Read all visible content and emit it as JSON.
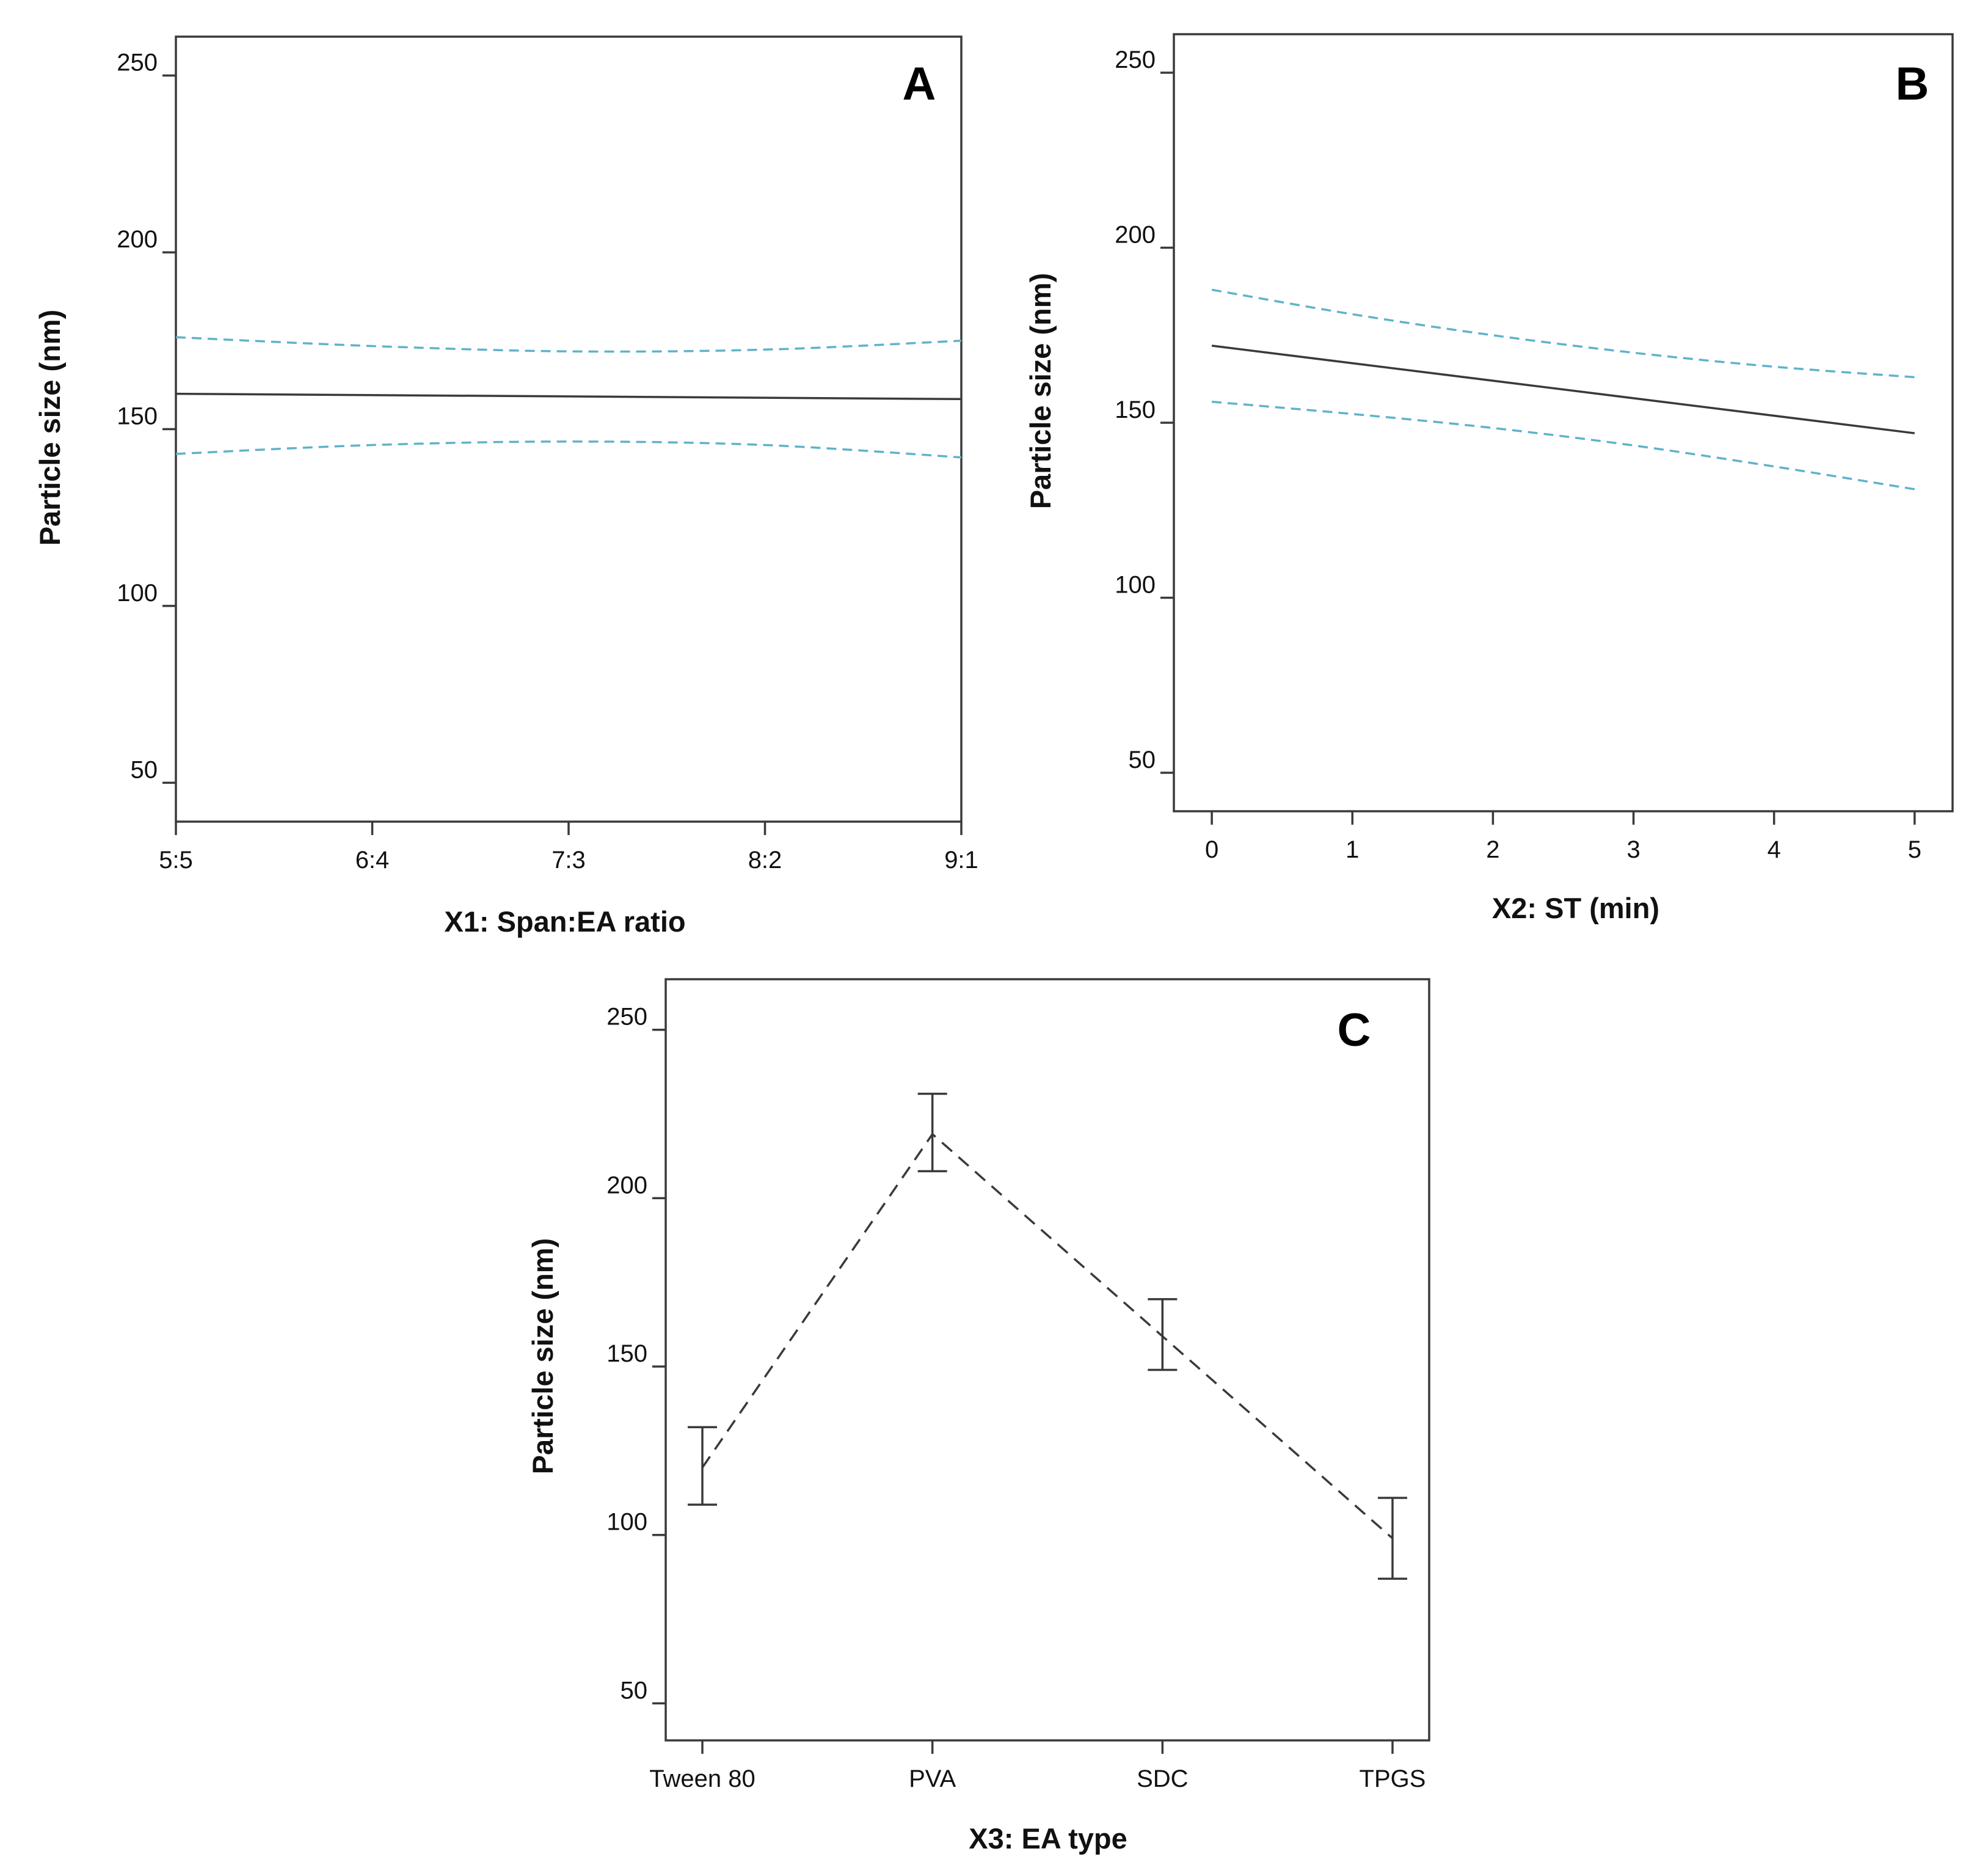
{
  "colors": {
    "frame": "#3a3a3a",
    "mean": "#3a3a3a",
    "ci": "#5fb3c9",
    "categorical": "#3a3a3a"
  },
  "chart_data": [
    {
      "panel": "A",
      "type": "line",
      "xlabel": "X1: Span:EA ratio",
      "ylabel": "Particle size (nm)",
      "xlim": [
        0,
        4
      ],
      "ylim": [
        39,
        261
      ],
      "y_ticks": [
        50,
        100,
        150,
        200,
        250
      ],
      "x_ticks": [
        0,
        1,
        2,
        3,
        4
      ],
      "x_tick_labels": [
        "5:5",
        "6:4",
        "7:3",
        "8:2",
        "9:1"
      ],
      "series": [
        {
          "name": "predicted",
          "style": "solid",
          "x": [
            0,
            4
          ],
          "y": [
            160,
            158.5
          ]
        },
        {
          "name": "upper 95% CI",
          "style": "dashed",
          "x": [
            0,
            1,
            2,
            3,
            4
          ],
          "y": [
            176,
            173.5,
            172,
            172.5,
            175
          ]
        },
        {
          "name": "lower 95% CI",
          "style": "dashed",
          "x": [
            0,
            1,
            2,
            3,
            4
          ],
          "y": [
            143,
            145.5,
            146.5,
            145.5,
            142
          ]
        }
      ]
    },
    {
      "panel": "B",
      "type": "line",
      "xlabel": "X2: ST (min)",
      "ylabel": "Particle size (nm)",
      "xlim": [
        -0.27,
        5.27
      ],
      "ylim": [
        39,
        261
      ],
      "y_ticks": [
        50,
        100,
        150,
        200,
        250
      ],
      "x_ticks": [
        0,
        1,
        2,
        3,
        4,
        5
      ],
      "x_tick_labels": [
        "0",
        "1",
        "2",
        "3",
        "4",
        "5"
      ],
      "series": [
        {
          "name": "predicted",
          "style": "solid",
          "x": [
            0,
            5
          ],
          "y": [
            172,
            147
          ]
        },
        {
          "name": "upper 95% CI",
          "style": "dashed",
          "x": [
            0,
            1,
            2,
            3,
            4,
            5
          ],
          "y": [
            188,
            181,
            175,
            170,
            166,
            163
          ]
        },
        {
          "name": "lower 95% CI",
          "style": "dashed",
          "x": [
            0,
            1,
            2,
            3,
            4,
            5
          ],
          "y": [
            156,
            152.5,
            148.5,
            143.5,
            137.5,
            131
          ]
        }
      ]
    },
    {
      "panel": "C",
      "type": "line",
      "xlabel": "X3: EA type",
      "ylabel": "Particle size (nm)",
      "ylim": [
        39,
        265
      ],
      "y_ticks": [
        50,
        100,
        150,
        200,
        250
      ],
      "categories": [
        "Tween 80",
        "PVA",
        "SDC",
        "TPGS"
      ],
      "series": [
        {
          "name": "mean with error bars",
          "style": "dashed",
          "values": [
            120,
            219,
            159,
            99
          ],
          "upper": [
            132,
            231,
            170,
            111
          ],
          "lower": [
            109,
            208,
            149,
            87
          ]
        }
      ]
    }
  ]
}
